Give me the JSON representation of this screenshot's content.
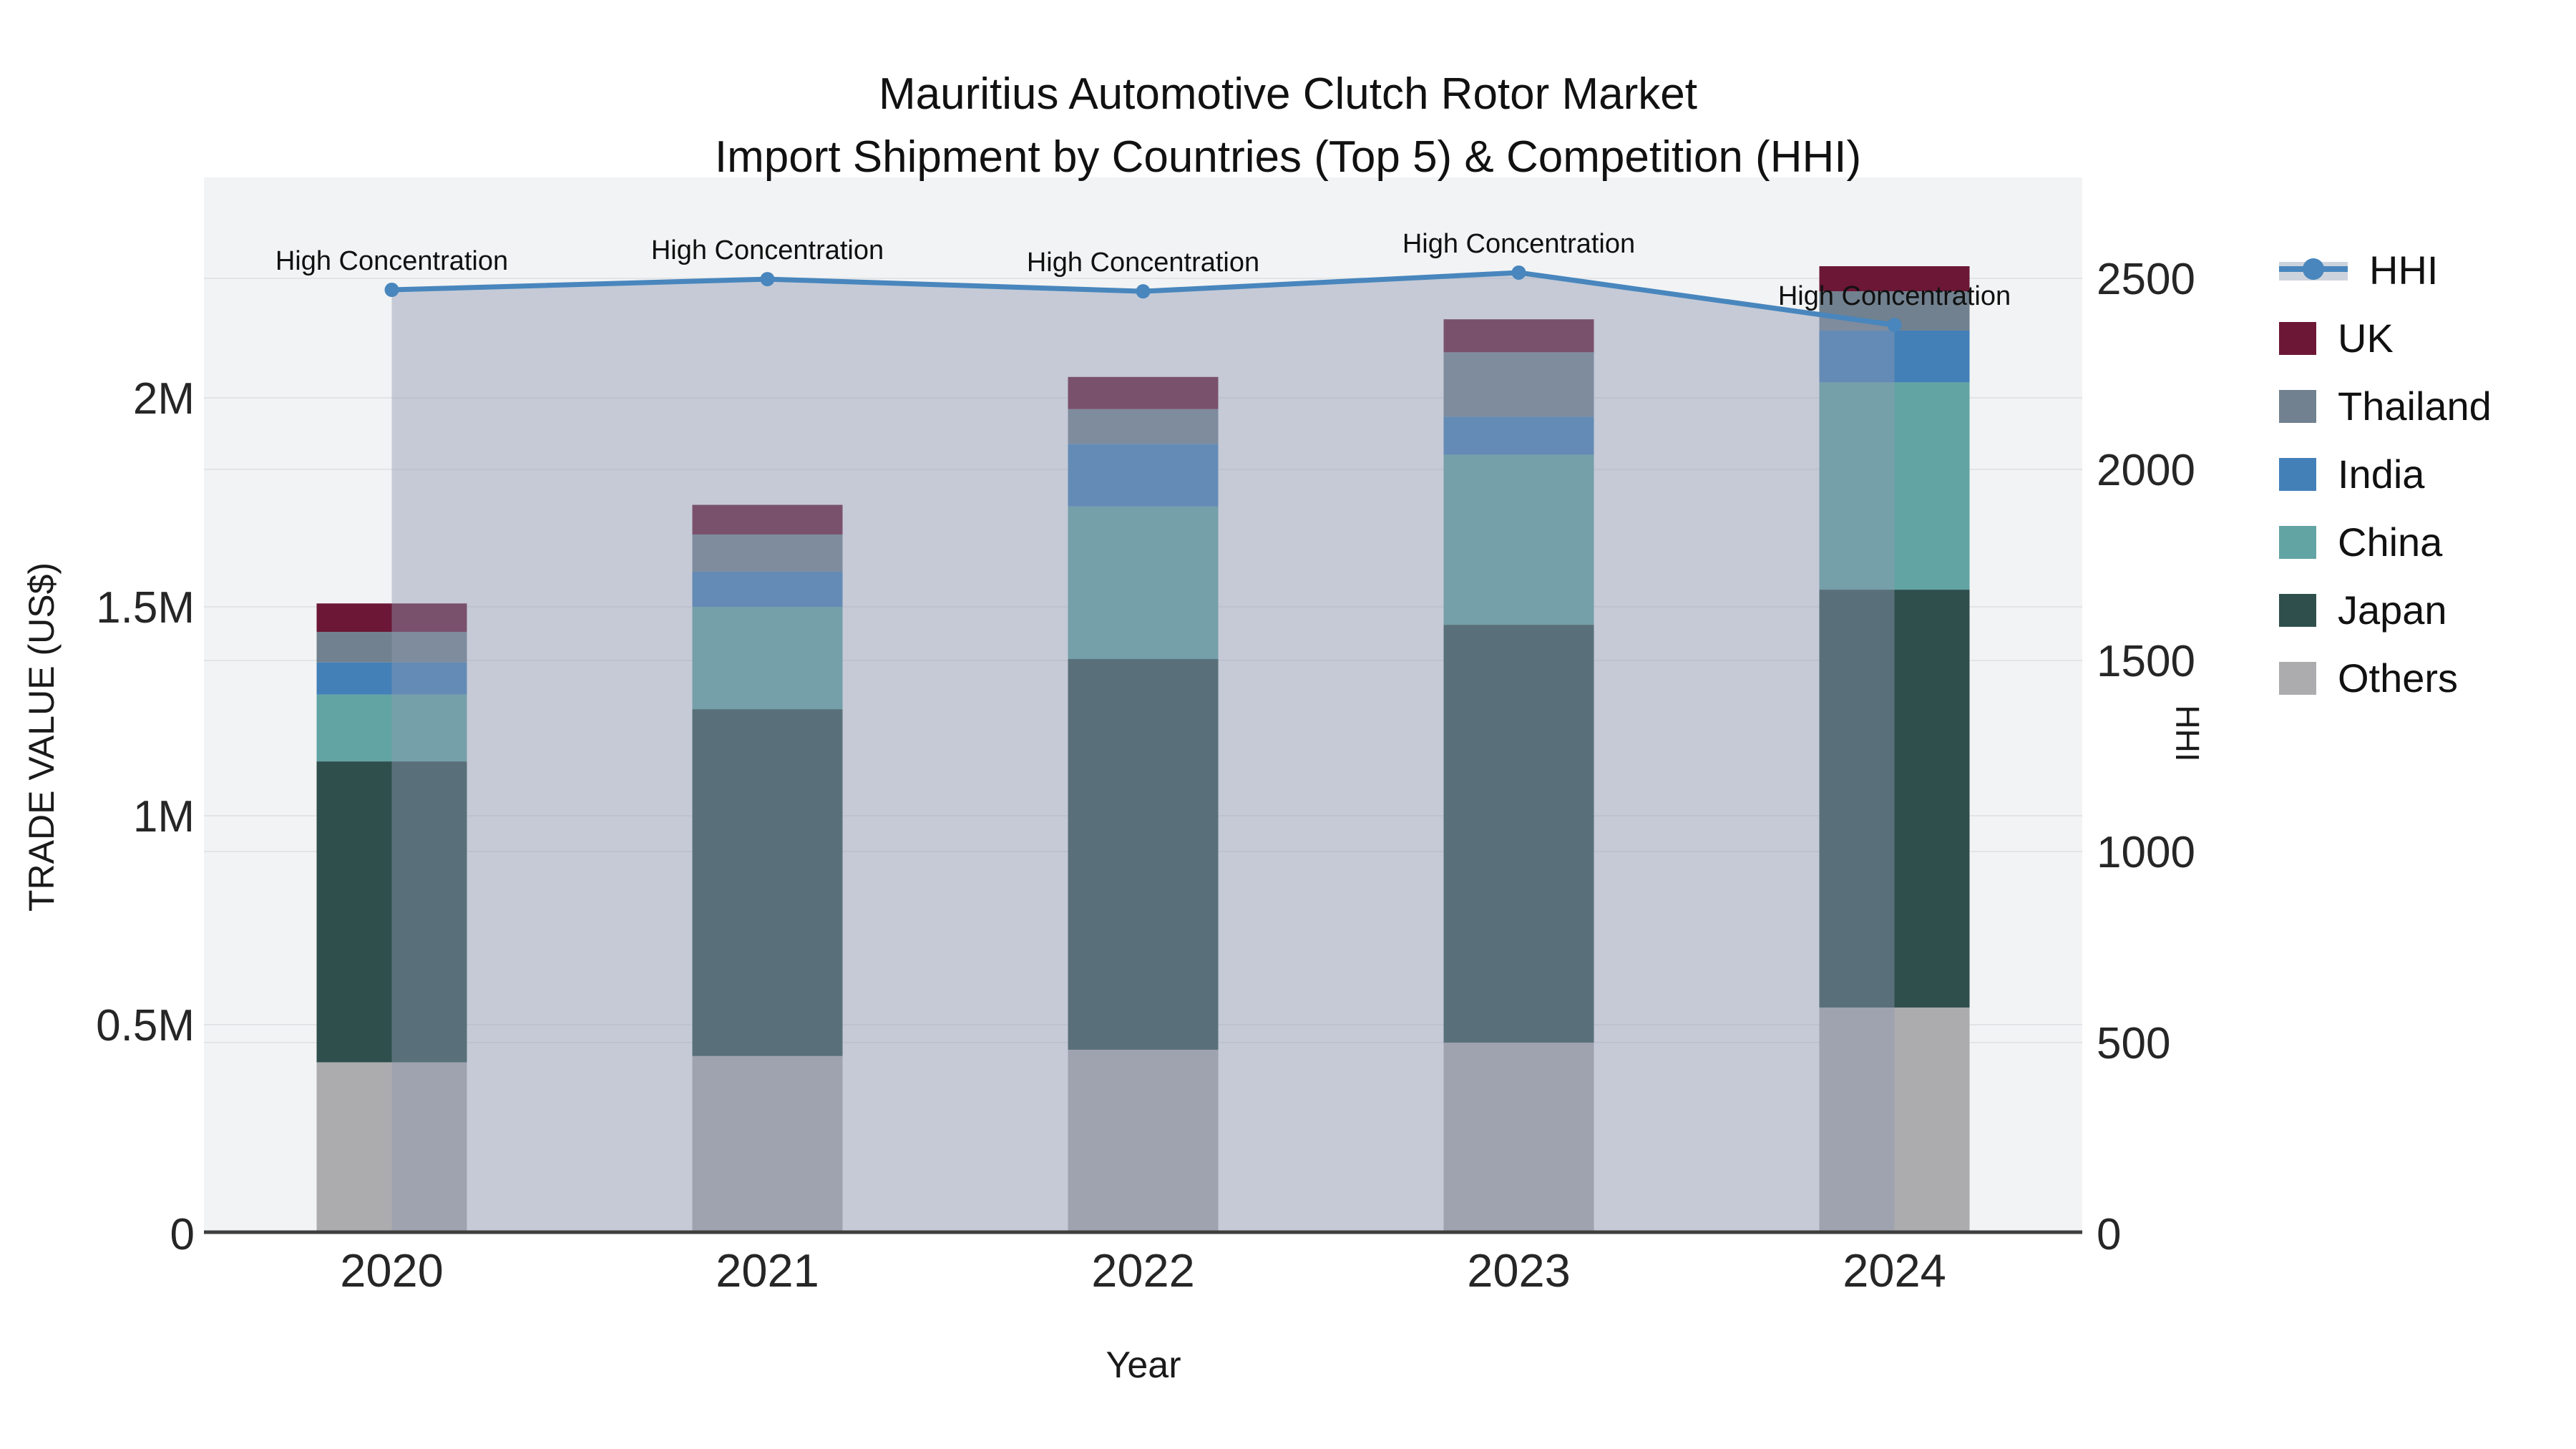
{
  "title": {
    "line1": "Mauritius Automotive Clutch Rotor Market",
    "line2": "Import Shipment by Countries (Top 5) & Competition (HHI)"
  },
  "axes": {
    "x": {
      "title": "Year"
    },
    "y_left": {
      "title": "TRADE VALUE (US$)",
      "tick_labels": [
        "0",
        "0.5M",
        "1M",
        "1.5M",
        "2M"
      ],
      "tick_values": [
        0,
        500000,
        1000000,
        1500000,
        2000000
      ]
    },
    "y_right": {
      "title": "HHI",
      "tick_labels": [
        "0",
        "500",
        "1000",
        "1500",
        "2000",
        "2500"
      ],
      "tick_values": [
        0,
        500,
        1000,
        1500,
        2000,
        2500
      ]
    }
  },
  "chart_data": {
    "type": "bar+line",
    "title": "Mauritius Automotive Clutch Rotor Market — Import Shipment by Countries (Top 5) & Competition (HHI)",
    "categories": [
      "2020",
      "2021",
      "2022",
      "2023",
      "2024"
    ],
    "xlabel": "Year",
    "ylabel_left": "TRADE VALUE (US$)",
    "ylabel_right": "HHI",
    "ylim_left": [
      0,
      2530000
    ],
    "ylim_right": [
      0,
      2760
    ],
    "grid": true,
    "stack_order_bottom_to_top": [
      "Others",
      "Japan",
      "China",
      "India",
      "Thailand",
      "UK"
    ],
    "series": [
      {
        "name": "Others",
        "color": "#ACACAE",
        "values": [
          410000,
          425000,
          440000,
          457000,
          541000
        ]
      },
      {
        "name": "Japan",
        "color": "#2F4F4D",
        "values": [
          720000,
          830000,
          935000,
          1000000,
          1000000
        ]
      },
      {
        "name": "China",
        "color": "#62A4A3",
        "values": [
          160000,
          245000,
          365000,
          407000,
          496000
        ]
      },
      {
        "name": "India",
        "color": "#4380B8",
        "values": [
          77000,
          84000,
          150000,
          91000,
          124000
        ]
      },
      {
        "name": "Thailand",
        "color": "#71818F",
        "values": [
          73000,
          89000,
          83000,
          154000,
          94000
        ]
      },
      {
        "name": "UK",
        "color": "#6B1735",
        "values": [
          68000,
          71000,
          77000,
          79000,
          60000
        ]
      }
    ],
    "totals": [
      1508000,
      1744000,
      2050000,
      2188000,
      2315000
    ],
    "line": {
      "name": "HHI",
      "axis": "right",
      "color": "#4886BD",
      "area_fill": "rgba(141,154,178,0.45)",
      "values": [
        2470,
        2498,
        2466,
        2515,
        2378
      ]
    },
    "annotations": [
      {
        "category": "2020",
        "text": "High Concentration"
      },
      {
        "category": "2021",
        "text": "High Concentration"
      },
      {
        "category": "2022",
        "text": "High Concentration"
      },
      {
        "category": "2023",
        "text": "High Concentration"
      },
      {
        "category": "2024",
        "text": "High Concentration"
      }
    ],
    "legend_position": "right"
  },
  "legend": {
    "items": [
      {
        "label": "HHI",
        "type": "line",
        "color": "#4886BD"
      },
      {
        "label": "UK",
        "type": "box",
        "color": "#6B1735"
      },
      {
        "label": "Thailand",
        "type": "box",
        "color": "#71818F"
      },
      {
        "label": "India",
        "type": "box",
        "color": "#4380B8"
      },
      {
        "label": "China",
        "type": "box",
        "color": "#62A4A3"
      },
      {
        "label": "Japan",
        "type": "box",
        "color": "#2F4F4D"
      },
      {
        "label": "Others",
        "type": "box",
        "color": "#ACACAE"
      }
    ]
  },
  "style": {
    "plot_bg": "#F2F3F4",
    "grid_color": "#E3E4E6",
    "spine_color": "#3E3E3E",
    "tick_color": "#262626",
    "annotation_color": "#111111"
  }
}
